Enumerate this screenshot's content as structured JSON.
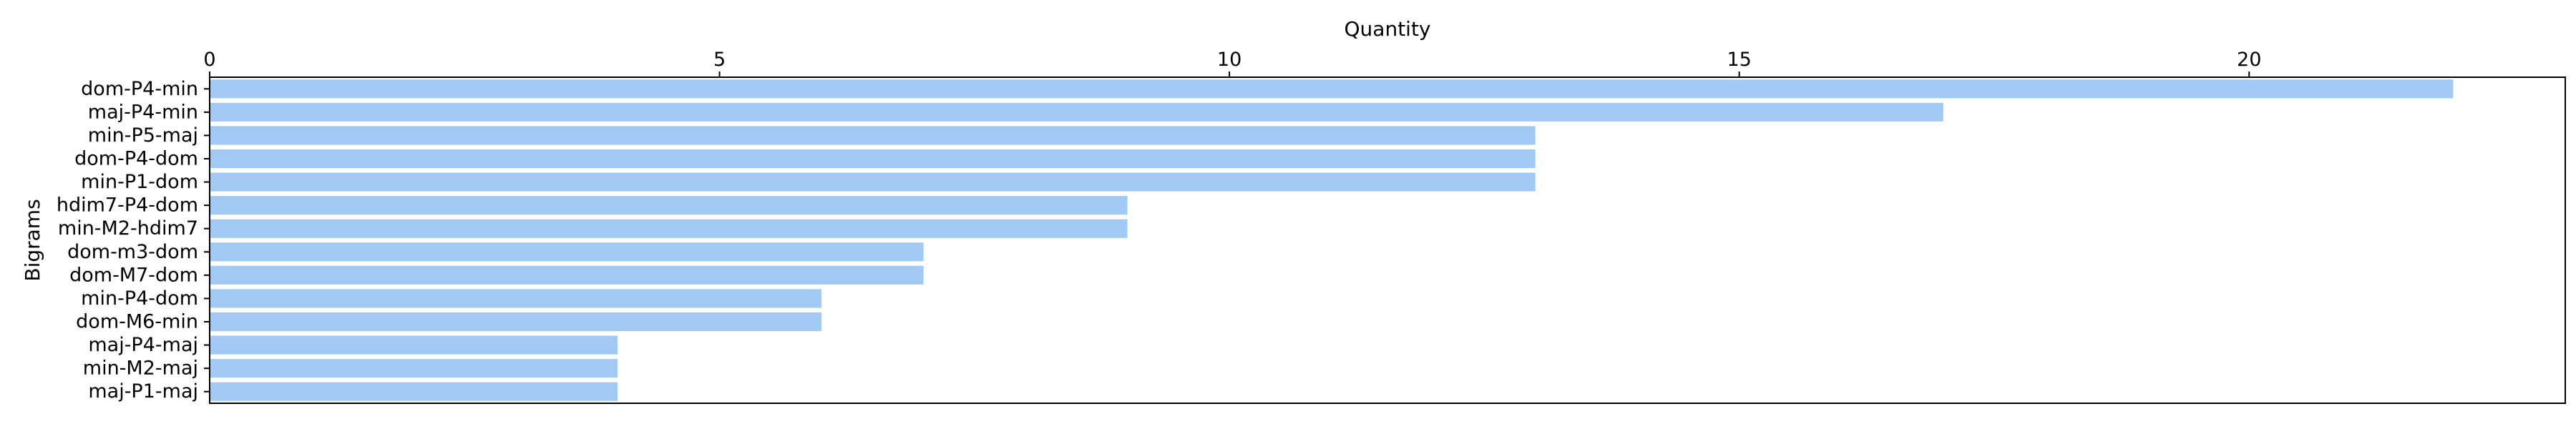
{
  "chart_data": {
    "type": "bar",
    "orientation": "horizontal",
    "xlabel": "Quantity",
    "ylabel": "Bigrams",
    "x_axis_position": "top",
    "xlim": [
      0,
      23.1
    ],
    "xticks": [
      0,
      5,
      10,
      15,
      20
    ],
    "grid": false,
    "bar_color": "#a1c9f4",
    "categories": [
      "dom-P4-min",
      "maj-P4-min",
      "min-P5-maj",
      "dom-P4-dom",
      "min-P1-dom",
      "hdim7-P4-dom",
      "min-M2-hdim7",
      "dom-m3-dom",
      "dom-M7-dom",
      "min-P4-dom",
      "dom-M6-min",
      "maj-P4-maj",
      "min-M2-maj",
      "maj-P1-maj"
    ],
    "values": [
      22,
      17,
      13,
      13,
      13,
      9,
      9,
      7,
      7,
      6,
      6,
      4,
      4,
      4
    ]
  }
}
